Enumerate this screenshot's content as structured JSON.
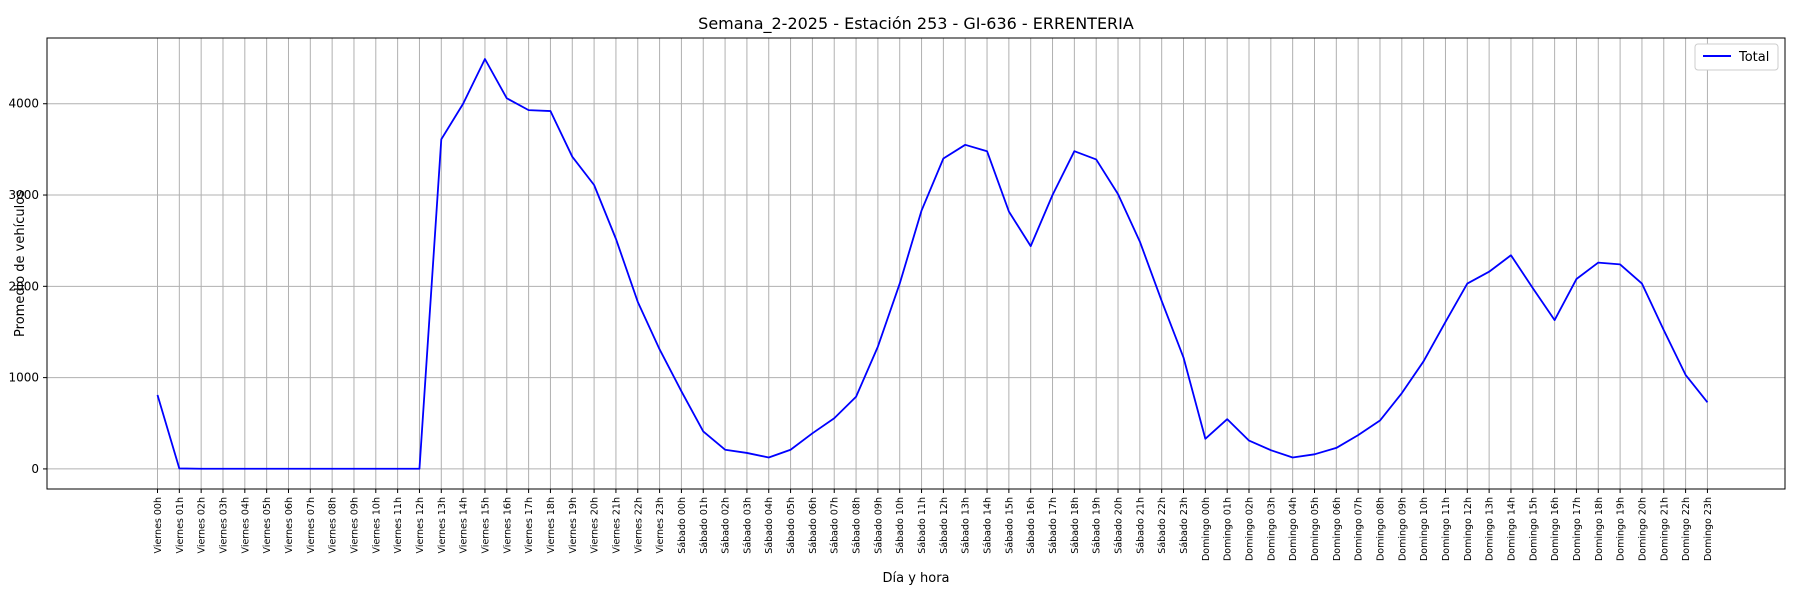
{
  "chart_data": {
    "type": "line",
    "title": "Semana_2-2025 - Estación 253 - GI-636  - ERRENTERIA",
    "xlabel": "Día y hora",
    "ylabel": "Promedio de vehículos",
    "ylim": [
      -220,
      4720
    ],
    "yticks": [
      0,
      1000,
      2000,
      3000,
      4000
    ],
    "grid": true,
    "legend_position": "top-right",
    "categories": [
      "Viernes 00h",
      "Viernes 01h",
      "Viernes 02h",
      "Viernes 03h",
      "Viernes 04h",
      "Viernes 05h",
      "Viernes 06h",
      "Viernes 07h",
      "Viernes 08h",
      "Viernes 09h",
      "Viernes 10h",
      "Viernes 11h",
      "Viernes 12h",
      "Viernes 13h",
      "Viernes 14h",
      "Viernes 15h",
      "Viernes 16h",
      "Viernes 17h",
      "Viernes 18h",
      "Viernes 19h",
      "Viernes 20h",
      "Viernes 21h",
      "Viernes 22h",
      "Viernes 23h",
      "Sábado 00h",
      "Sábado 01h",
      "Sábado 02h",
      "Sábado 03h",
      "Sábado 04h",
      "Sábado 05h",
      "Sábado 06h",
      "Sábado 07h",
      "Sábado 08h",
      "Sábado 09h",
      "Sábado 10h",
      "Sábado 11h",
      "Sábado 12h",
      "Sábado 13h",
      "Sábado 14h",
      "Sábado 15h",
      "Sábado 16h",
      "Sábado 17h",
      "Sábado 18h",
      "Sábado 19h",
      "Sábado 20h",
      "Sábado 21h",
      "Sábado 22h",
      "Sábado 23h",
      "Domingo 00h",
      "Domingo 01h",
      "Domingo 02h",
      "Domingo 03h",
      "Domingo 04h",
      "Domingo 05h",
      "Domingo 06h",
      "Domingo 07h",
      "Domingo 08h",
      "Domingo 09h",
      "Domingo 10h",
      "Domingo 11h",
      "Domingo 12h",
      "Domingo 13h",
      "Domingo 14h",
      "Domingo 15h",
      "Domingo 16h",
      "Domingo 17h",
      "Domingo 18h",
      "Domingo 19h",
      "Domingo 20h",
      "Domingo 21h",
      "Domingo 22h",
      "Domingo 23h"
    ],
    "series": [
      {
        "name": "Total",
        "color": "#0000ff",
        "values": [
          810,
          5,
          2,
          2,
          2,
          2,
          2,
          2,
          2,
          2,
          2,
          2,
          2,
          3610,
          4000,
          4490,
          4060,
          3930,
          3920,
          3420,
          3110,
          2520,
          1830,
          1310,
          850,
          410,
          210,
          175,
          125,
          210,
          390,
          555,
          790,
          1340,
          2030,
          2830,
          3400,
          3550,
          3480,
          2820,
          2440,
          3000,
          3480,
          3390,
          3010,
          2490,
          1840,
          1220,
          330,
          545,
          310,
          205,
          125,
          160,
          230,
          370,
          530,
          830,
          1180,
          1610,
          2030,
          2160,
          2340,
          1980,
          1630,
          2080,
          2260,
          2240,
          2030,
          1520,
          1030,
          730
        ]
      }
    ]
  }
}
